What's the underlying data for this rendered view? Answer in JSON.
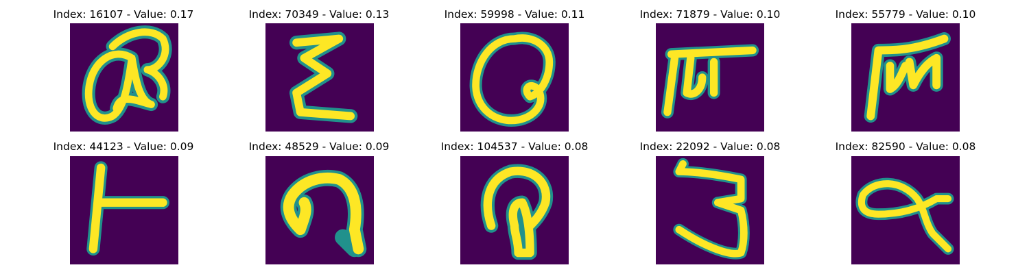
{
  "colors": {
    "background": "#440154",
    "stroke_edge": "#21918c",
    "stroke_core": "#fde725"
  },
  "panels": [
    {
      "title": "Index: 16107 - Value: 0.17",
      "glyph": "cursive-a-glyph"
    },
    {
      "title": "Index: 70349 - Value: 0.13",
      "glyph": "epsilon-glyph"
    },
    {
      "title": "Index: 59998 - Value: 0.11",
      "glyph": "looped-a-glyph"
    },
    {
      "title": "Index: 71879 - Value: 0.10",
      "glyph": "m-hook-glyph"
    },
    {
      "title": "Index: 55779 - Value: 0.10",
      "glyph": "m-glyph"
    },
    {
      "title": "Index: 44123 - Value: 0.09",
      "glyph": "t-glyph"
    },
    {
      "title": "Index: 48529 - Value: 0.09",
      "glyph": "arch-glyph"
    },
    {
      "title": "Index: 104537 - Value: 0.08",
      "glyph": "hooked-p-glyph"
    },
    {
      "title": "Index: 22092 - Value: 0.08",
      "glyph": "three-glyph"
    },
    {
      "title": "Index: 82590 - Value: 0.08",
      "glyph": "alpha-glyph"
    }
  ]
}
